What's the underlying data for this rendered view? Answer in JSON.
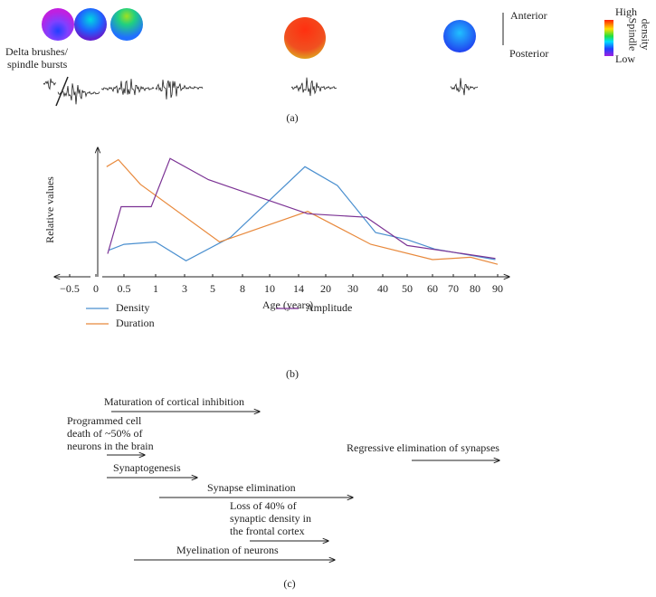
{
  "panel_a": {
    "label": "(a)",
    "early_label": [
      "Delta brushes/",
      "spindle bursts"
    ],
    "orientation": [
      "Anterior",
      "Posterior"
    ],
    "colorbar": {
      "high": "High",
      "low": "Low",
      "title": [
        "Spindle",
        "density"
      ]
    }
  },
  "chart_data": {
    "type": "line",
    "panel_label": "(b)",
    "xlabel": "Age (years)",
    "ylabel": "Relative values",
    "xticks": [
      {
        "value": -0.5,
        "label": "−0.5"
      },
      0,
      0.5,
      1,
      3,
      5,
      8,
      10,
      14,
      20,
      30,
      40,
      50,
      60,
      70,
      80,
      90
    ],
    "xlim": [
      -0.5,
      90
    ],
    "ylim": [
      0,
      100
    ],
    "legend": "bottom",
    "series": [
      {
        "name": "Density",
        "color": "#4a8fcf",
        "x": [
          0.23,
          0.5,
          1,
          3.1,
          6.8,
          15.4,
          24.3,
          37.6,
          50,
          61,
          89
        ],
        "values": [
          18,
          23,
          25,
          9,
          29,
          89,
          73,
          33,
          27,
          19,
          10
        ]
      },
      {
        "name": "Duration",
        "color": "#e8893c",
        "x": [
          0.19,
          0.4,
          0.76,
          5.7,
          16,
          36,
          60,
          78,
          90
        ],
        "values": [
          89,
          95,
          74,
          25,
          51,
          23,
          10,
          12,
          6
        ]
      },
      {
        "name": "Amplitude",
        "color": "#7b3294",
        "x": [
          0.21,
          0.45,
          0.93,
          2,
          4.7,
          16,
          34.5,
          50,
          89
        ],
        "values": [
          15,
          55,
          55,
          96,
          78,
          49,
          46,
          22,
          11
        ]
      }
    ]
  },
  "panel_c": {
    "label": "(c)",
    "events": [
      {
        "text": [
          "Maturation of cortical inhibition"
        ]
      },
      {
        "text": [
          "Programmed cell",
          "death of ~50% of",
          "neurons in the brain"
        ]
      },
      {
        "text": [
          "Synaptogenesis"
        ]
      },
      {
        "text": [
          "Synapse elimination"
        ]
      },
      {
        "text": [
          "Loss of 40% of",
          "synaptic density in",
          "the frontal cortex"
        ]
      },
      {
        "text": [
          "Myelination of neurons"
        ]
      },
      {
        "text": [
          "Regressive elimination of synapses"
        ]
      }
    ]
  }
}
